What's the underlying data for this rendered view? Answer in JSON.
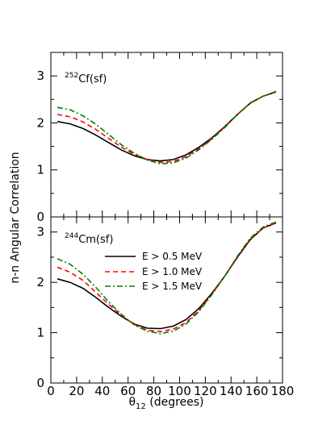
{
  "chart_data": {
    "type": "line",
    "xlabel_main": "θ",
    "xlabel_sub": "12",
    "xlabel_unit": " (degrees)",
    "ylabel": "n-n Angular Correlation",
    "xlim": [
      0,
      180
    ],
    "x_ticks": [
      "0",
      "20",
      "40",
      "60",
      "80",
      "100",
      "120",
      "140",
      "160",
      "180"
    ],
    "legend_placement": "bottom panel, center-left",
    "series_styles": [
      {
        "color": "#000000",
        "dash": ""
      },
      {
        "color": "#ff0000",
        "dash": "6,4"
      },
      {
        "color": "#008000",
        "dash": "7,3,2,3"
      }
    ],
    "legend": [
      "E > 0.5 MeV",
      "E > 1.0 MeV",
      "E > 1.5 MeV"
    ],
    "panels": [
      {
        "nucleus_mass": "252",
        "nucleus_name": "Cf(sf)",
        "ylim": [
          0,
          3.5
        ],
        "y_ticks": [
          "0",
          "1",
          "2",
          "3"
        ],
        "x": [
          5,
          15,
          25,
          35,
          45,
          55,
          65,
          75,
          85,
          95,
          105,
          115,
          125,
          135,
          145,
          155,
          165,
          175
        ],
        "series": [
          {
            "values": [
              2.03,
              1.98,
              1.88,
              1.74,
              1.58,
              1.42,
              1.3,
              1.22,
              1.19,
              1.22,
              1.32,
              1.48,
              1.68,
              1.92,
              2.18,
              2.42,
              2.57,
              2.66
            ]
          },
          {
            "values": [
              2.18,
              2.13,
              2.02,
              1.86,
              1.67,
              1.48,
              1.33,
              1.22,
              1.16,
              1.18,
              1.28,
              1.45,
              1.66,
              1.91,
              2.18,
              2.42,
              2.57,
              2.66
            ]
          },
          {
            "values": [
              2.33,
              2.28,
              2.15,
              1.97,
              1.75,
              1.53,
              1.35,
              1.21,
              1.13,
              1.15,
              1.25,
              1.43,
              1.65,
              1.9,
              2.18,
              2.43,
              2.57,
              2.67
            ]
          }
        ]
      },
      {
        "nucleus_mass": "244",
        "nucleus_name": "Cm(sf)",
        "ylim": [
          0,
          3.3
        ],
        "y_ticks": [
          "0",
          "1",
          "2",
          "3"
        ],
        "x": [
          5,
          15,
          25,
          35,
          45,
          55,
          65,
          75,
          85,
          95,
          105,
          115,
          125,
          135,
          145,
          155,
          165,
          175
        ],
        "series": [
          {
            "values": [
              2.07,
              2.0,
              1.88,
              1.7,
              1.5,
              1.32,
              1.17,
              1.09,
              1.08,
              1.13,
              1.26,
              1.48,
              1.78,
              2.12,
              2.5,
              2.85,
              3.08,
              3.18
            ]
          },
          {
            "values": [
              2.3,
              2.2,
              2.04,
              1.8,
              1.56,
              1.34,
              1.16,
              1.05,
              1.02,
              1.07,
              1.2,
              1.44,
              1.76,
              2.12,
              2.52,
              2.86,
              3.08,
              3.18
            ]
          },
          {
            "values": [
              2.47,
              2.36,
              2.16,
              1.9,
              1.61,
              1.36,
              1.15,
              1.03,
              0.98,
              1.03,
              1.17,
              1.42,
              1.75,
              2.12,
              2.52,
              2.88,
              3.1,
              3.2
            ]
          }
        ]
      }
    ]
  }
}
